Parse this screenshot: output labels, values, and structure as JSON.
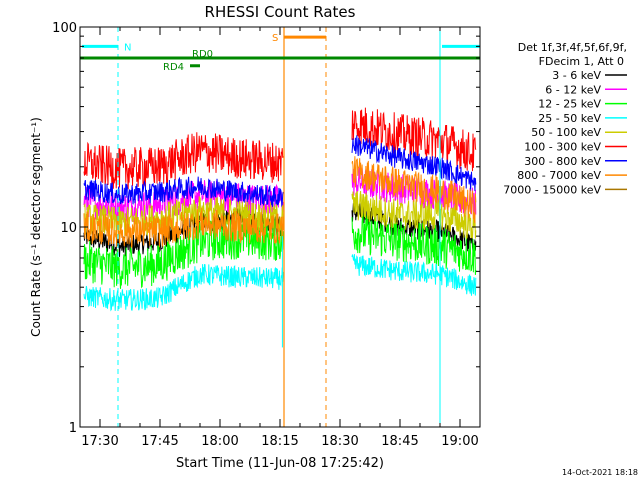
{
  "chart_data": {
    "type": "line",
    "title": "RHESSI Count Rates",
    "xlabel": "Start Time (11-Jun-08 17:25:42)",
    "ylabel": "Count Rate (s⁻¹ detector segment⁻¹)",
    "yscale": "log",
    "ylim": [
      1,
      100
    ],
    "xlim_minutes_after_1725": [
      0,
      100
    ],
    "x_ticks": [
      {
        "label": "17:30",
        "minutes": 5
      },
      {
        "label": "17:45",
        "minutes": 20
      },
      {
        "label": "18:00",
        "minutes": 35
      },
      {
        "label": "18:15",
        "minutes": 50
      },
      {
        "label": "18:30",
        "minutes": 65
      },
      {
        "label": "18:45",
        "minutes": 80
      },
      {
        "label": "19:00",
        "minutes": 95
      }
    ],
    "y_ticks": [
      {
        "label": "1",
        "value": 1
      },
      {
        "label": "10",
        "value": 10
      },
      {
        "label": "100",
        "value": 100
      }
    ],
    "legend_header": [
      "Det 1f,3f,4f,5f,6f,9f,",
      "FDecim 1, Att 0"
    ],
    "legend_position": "right",
    "gap_minutes": [
      51,
      68
    ],
    "series": [
      {
        "name": "3 - 6 keV",
        "color": "#000000",
        "values": [
          [
            1,
            9.0
          ],
          [
            10,
            8.0
          ],
          [
            20,
            8.5
          ],
          [
            30,
            10.5
          ],
          [
            40,
            11.0
          ],
          [
            50,
            10.0
          ],
          [
            68,
            12.0
          ],
          [
            80,
            10.0
          ],
          [
            90,
            9.5
          ],
          [
            99,
            8.0
          ]
        ]
      },
      {
        "name": "6 - 12 keV",
        "color": "#ff00ff",
        "values": [
          [
            1,
            13.5
          ],
          [
            10,
            12.5
          ],
          [
            20,
            13.0
          ],
          [
            30,
            14.5
          ],
          [
            40,
            14.0
          ],
          [
            50,
            13.5
          ],
          [
            68,
            17.0
          ],
          [
            80,
            15.5
          ],
          [
            90,
            14.5
          ],
          [
            99,
            13.0
          ]
        ]
      },
      {
        "name": "12 - 25 keV",
        "color": "#00ff00",
        "values": [
          [
            1,
            6.8
          ],
          [
            10,
            6.2
          ],
          [
            20,
            6.5
          ],
          [
            30,
            8.5
          ],
          [
            40,
            8.8
          ],
          [
            50,
            8.5
          ],
          [
            68,
            9.5
          ],
          [
            80,
            8.5
          ],
          [
            90,
            8.0
          ],
          [
            99,
            7.2
          ]
        ]
      },
      {
        "name": "25 - 50 keV",
        "color": "#00ffff",
        "values": [
          [
            1,
            4.5
          ],
          [
            10,
            4.3
          ],
          [
            20,
            4.4
          ],
          [
            30,
            5.8
          ],
          [
            40,
            5.6
          ],
          [
            50,
            5.5
          ],
          [
            68,
            6.5
          ],
          [
            80,
            6.0
          ],
          [
            90,
            5.8
          ],
          [
            99,
            5.0
          ]
        ]
      },
      {
        "name": "50 - 100 keV",
        "color": "#cccc00",
        "values": [
          [
            1,
            11.0
          ],
          [
            10,
            10.5
          ],
          [
            20,
            11.0
          ],
          [
            30,
            12.0
          ],
          [
            40,
            11.5
          ],
          [
            50,
            11.0
          ],
          [
            68,
            13.0
          ],
          [
            80,
            11.5
          ],
          [
            90,
            11.5
          ],
          [
            99,
            10.0
          ]
        ]
      },
      {
        "name": "100 - 300 keV",
        "color": "#ff0000",
        "values": [
          [
            1,
            21.0
          ],
          [
            10,
            19.5
          ],
          [
            20,
            20.0
          ],
          [
            30,
            24.0
          ],
          [
            40,
            22.0
          ],
          [
            50,
            21.0
          ],
          [
            68,
            33.0
          ],
          [
            80,
            29.0
          ],
          [
            90,
            27.0
          ],
          [
            99,
            23.0
          ]
        ]
      },
      {
        "name": "300 - 800 keV",
        "color": "#0000ff",
        "values": [
          [
            1,
            15.5
          ],
          [
            10,
            14.5
          ],
          [
            20,
            15.0
          ],
          [
            30,
            16.0
          ],
          [
            40,
            15.0
          ],
          [
            50,
            14.0
          ],
          [
            68,
            26.0
          ],
          [
            80,
            22.0
          ],
          [
            90,
            20.0
          ],
          [
            99,
            16.5
          ]
        ]
      },
      {
        "name": "800 - 7000 keV",
        "color": "#ff8800",
        "values": [
          [
            1,
            10.0
          ],
          [
            10,
            9.5
          ],
          [
            20,
            9.5
          ],
          [
            30,
            10.5
          ],
          [
            40,
            10.0
          ],
          [
            50,
            9.8
          ],
          [
            68,
            19.0
          ],
          [
            80,
            16.5
          ],
          [
            90,
            15.0
          ],
          [
            99,
            12.5
          ]
        ]
      },
      {
        "name": "7000 - 15000 keV",
        "color": "#aa7700",
        "values": []
      }
    ],
    "annotations": [
      {
        "label": "N",
        "kind": "night",
        "color": "#00ffff",
        "x_start_minutes": 0,
        "x_end_minutes": 9.5,
        "level": 80
      },
      {
        "label": "N",
        "kind": "night",
        "color": "#00ffff",
        "x_start_minutes": 90,
        "x_end_minutes": 100,
        "level": 80
      },
      {
        "label": "S",
        "kind": "saa",
        "color": "#ff8800",
        "x_start_minutes": 51,
        "x_end_minutes": 61.5,
        "level": 89
      },
      {
        "label": "RD0",
        "kind": "decimation",
        "color": "#008800",
        "x_start_minutes": 0,
        "x_end_minutes": 100,
        "level": 70
      },
      {
        "label": "RD4",
        "kind": "decimation",
        "color": "#008800",
        "x_start_minutes": 27.5,
        "x_end_minutes": 30,
        "level": 64
      }
    ],
    "footer_timestamp": "14-Oct-2021 18:18"
  }
}
